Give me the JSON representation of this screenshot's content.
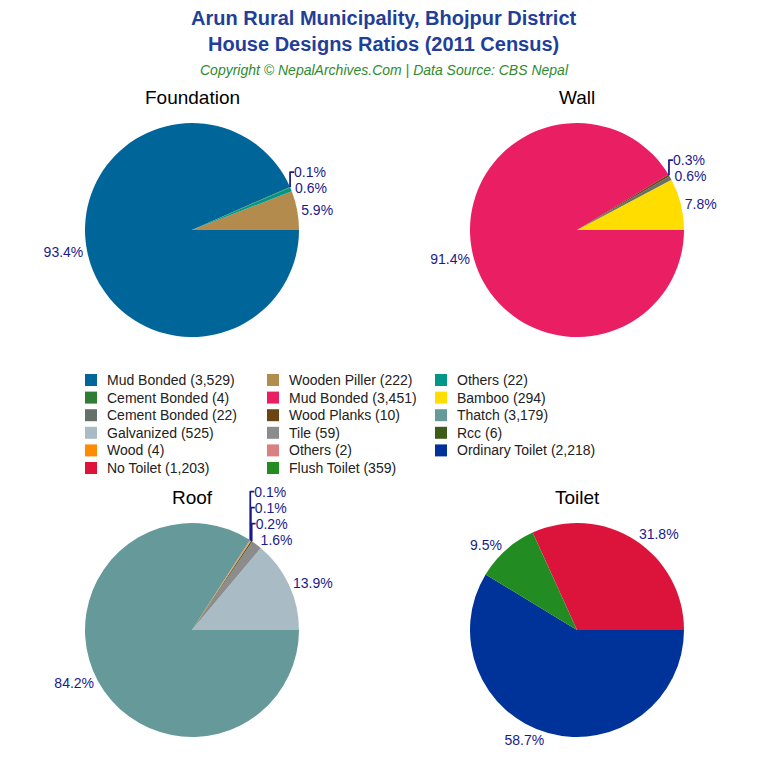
{
  "title": [
    "Arun Rural Municipality, Bhojpur District",
    "House Designs Ratios (2011 Census)"
  ],
  "subtitle": "Copyright © NepalArchives.Com | Data Source: CBS Nepal",
  "chart_data": [
    {
      "type": "pie",
      "title": "Foundation",
      "categories": [
        "Mud Bonded (3,529)",
        "Wooden Piller (222)",
        "Others (22)",
        "Cement Bonded (4)"
      ],
      "values": [
        93.4,
        5.9,
        0.6,
        0.1
      ],
      "value_labels": [
        "93.4%",
        "5.9%",
        "0.6%",
        "0.1%"
      ],
      "colors": [
        "#006699",
        "#b38b4d",
        "#009688",
        "#2e7d32"
      ],
      "data_labels": true
    },
    {
      "type": "pie",
      "title": "Wall",
      "categories": [
        "Mud Bonded (3,451)",
        "Bamboo (294)",
        "Cement Bonded (22)",
        "Wood Planks (10)"
      ],
      "values": [
        91.4,
        7.8,
        0.6,
        0.3
      ],
      "value_labels": [
        "91.4%",
        "7.8%",
        "0.6%",
        "0.3%"
      ],
      "colors": [
        "#e91e63",
        "#ffdd00",
        "#66706a",
        "#6b4513"
      ],
      "data_labels": true
    },
    {
      "type": "pie",
      "title": "Roof",
      "categories": [
        "Thatch (3,179)",
        "Galvanized (525)",
        "Tile (59)",
        "Rcc (6)",
        "Wood (4)",
        "Others (2)"
      ],
      "values": [
        84.2,
        13.9,
        1.6,
        0.2,
        0.1,
        0.1
      ],
      "value_labels": [
        "84.2%",
        "13.9%",
        "1.6%",
        "0.2%",
        "0.1%",
        "0.1%"
      ],
      "colors": [
        "#669999",
        "#a9bcc6",
        "#8c8c8c",
        "#3d5c1a",
        "#ff8c00",
        "#d98080"
      ],
      "data_labels": true
    },
    {
      "type": "pie",
      "title": "Toilet",
      "categories": [
        "Ordinary Toilet (2,218)",
        "No Toilet (1,203)",
        "Flush Toilet (359)"
      ],
      "values": [
        58.7,
        31.8,
        9.5
      ],
      "value_labels": [
        "58.7%",
        "31.8%",
        "9.5%"
      ],
      "colors": [
        "#003399",
        "#dc143c",
        "#228b22"
      ],
      "data_labels": true
    }
  ]
}
